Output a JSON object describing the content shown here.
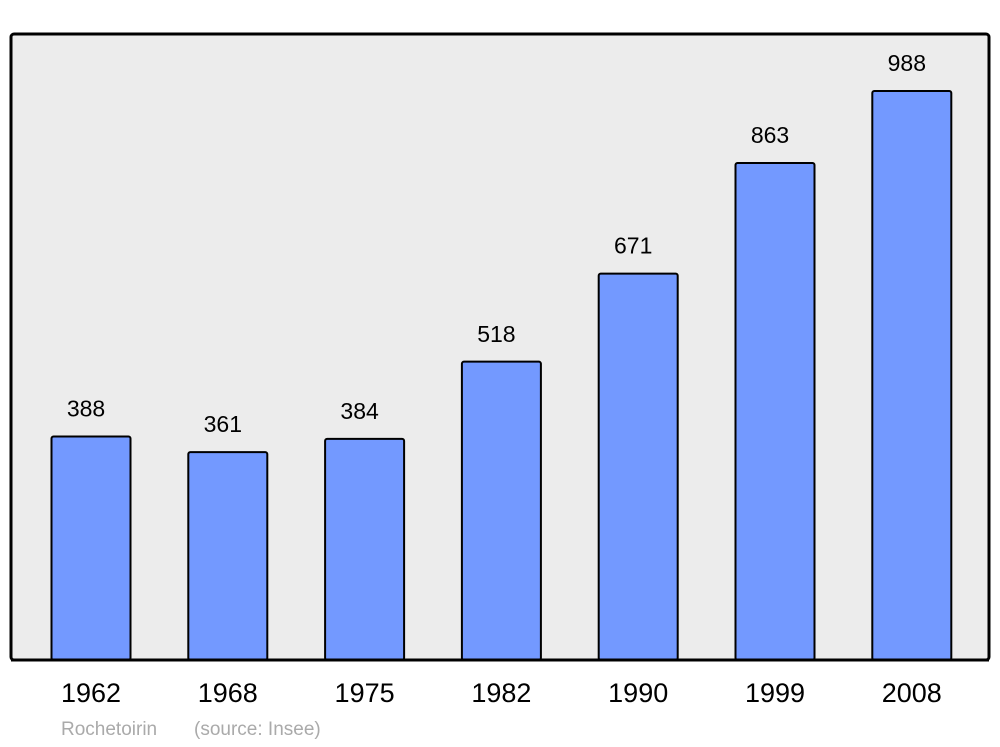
{
  "chart_data": {
    "type": "bar",
    "categories": [
      "1962",
      "1968",
      "1975",
      "1982",
      "1990",
      "1999",
      "2008"
    ],
    "values": [
      388,
      361,
      384,
      518,
      671,
      863,
      988
    ],
    "color": "#7399ff",
    "ylim": [
      0,
      1087
    ],
    "caption": "Rochetoirin",
    "source": "(source: Insee)"
  }
}
